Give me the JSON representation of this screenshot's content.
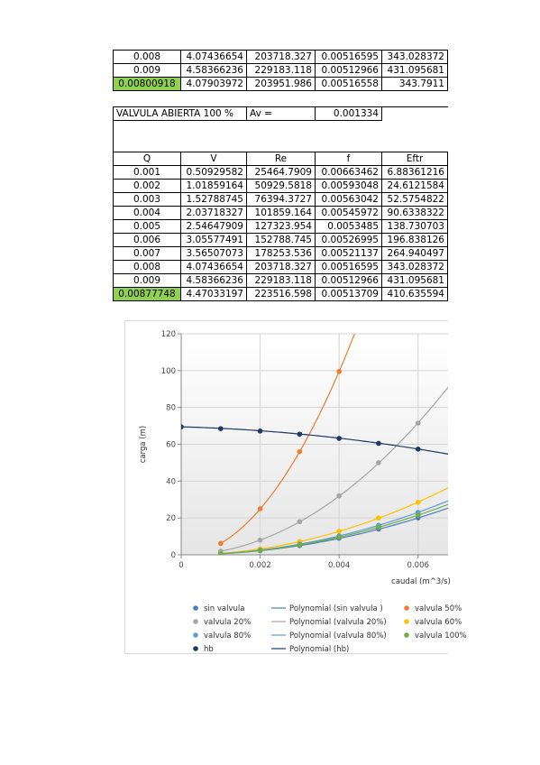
{
  "table_top": {
    "rows": [
      {
        "q": "0.008",
        "v": "4.07436654",
        "re": "203718.327",
        "f": "0.00516595",
        "eftr": "343.028372",
        "hl": false
      },
      {
        "q": "0.009",
        "v": "4.58366236",
        "re": "229183.118",
        "f": "0.00512966",
        "eftr": "431.095681",
        "hl": false
      },
      {
        "q": "0.00800918",
        "v": "4.07903972",
        "re": "203951.986",
        "f": "0.00516558",
        "eftr": "343.7911",
        "hl": true
      }
    ]
  },
  "table_main": {
    "title": "VALVULA ABIERTA 100 %",
    "av_label": "Av =",
    "av_value": "0.001334",
    "headers": [
      "Q",
      "V",
      "Re",
      "f",
      "Eftr"
    ],
    "rows": [
      {
        "q": "0.001",
        "v": "0.50929582",
        "re": "25464.7909",
        "f": "0.00663462",
        "eftr": "6.88361216",
        "hl": false
      },
      {
        "q": "0.002",
        "v": "1.01859164",
        "re": "50929.5818",
        "f": "0.00593048",
        "eftr": "24.6121584",
        "hl": false
      },
      {
        "q": "0.003",
        "v": "1.52788745",
        "re": "76394.3727",
        "f": "0.00563042",
        "eftr": "52.5754822",
        "hl": false
      },
      {
        "q": "0.004",
        "v": "2.03718327",
        "re": "101859.164",
        "f": "0.00545972",
        "eftr": "90.6338322",
        "hl": false
      },
      {
        "q": "0.005",
        "v": "2.54647909",
        "re": "127323.954",
        "f": "0.0053485",
        "eftr": "138.730703",
        "hl": false
      },
      {
        "q": "0.006",
        "v": "3.05577491",
        "re": "152788.745",
        "f": "0.00526995",
        "eftr": "196.838126",
        "hl": false
      },
      {
        "q": "0.007",
        "v": "3.56507073",
        "re": "178253.536",
        "f": "0.00521137",
        "eftr": "264.940497",
        "hl": false
      },
      {
        "q": "0.008",
        "v": "4.07436654",
        "re": "203718.327",
        "f": "0.00516595",
        "eftr": "343.028372",
        "hl": false
      },
      {
        "q": "0.009",
        "v": "4.58366236",
        "re": "229183.118",
        "f": "0.00512966",
        "eftr": "431.095681",
        "hl": false
      },
      {
        "q": "0.00877748",
        "v": "4.47033197",
        "re": "223516.598",
        "f": "0.00513709",
        "eftr": "410.635594",
        "hl": true
      }
    ]
  },
  "chart_data": {
    "type": "scatter",
    "xlabel": "caudal (m^3/s)",
    "ylabel": "carga (m)",
    "xlim": [
      0,
      0.007
    ],
    "ylim": [
      0,
      120
    ],
    "x_ticks": [
      "0",
      "0.002",
      "0.004",
      "0.006"
    ],
    "y_ticks": [
      "0",
      "20",
      "40",
      "60",
      "80",
      "100",
      "120"
    ],
    "grid": true,
    "legend_position": "bottom",
    "series": [
      {
        "name": "sin valvula",
        "color": "#4a7ebb",
        "x": [
          0.001,
          0.002,
          0.003,
          0.004,
          0.005,
          0.006
        ],
        "y": [
          0.6,
          2.2,
          5.0,
          9.0,
          14.0,
          20.0
        ]
      },
      {
        "name": "valvula 50%",
        "color": "#ed7d31",
        "x": [
          0.001,
          0.002,
          0.003,
          0.004
        ],
        "y": [
          6.2,
          25.0,
          56.0,
          99.5
        ]
      },
      {
        "name": "valvula 20%",
        "color": "#a5a5a5",
        "x": [
          0.001,
          0.002,
          0.003,
          0.004,
          0.005,
          0.006
        ],
        "y": [
          2.0,
          8.0,
          18.0,
          32.0,
          50.0,
          71.5
        ]
      },
      {
        "name": "valvula 60%",
        "color": "#ffc000",
        "x": [
          0.001,
          0.002,
          0.003,
          0.004,
          0.005,
          0.006
        ],
        "y": [
          0.8,
          3.2,
          7.2,
          12.8,
          20.0,
          28.5
        ]
      },
      {
        "name": "valvula 80%",
        "color": "#5b9bd5",
        "x": [
          0.001,
          0.002,
          0.003,
          0.004,
          0.005,
          0.006
        ],
        "y": [
          0.65,
          2.6,
          5.8,
          10.3,
          16.0,
          23.0
        ]
      },
      {
        "name": "valvula 100%",
        "color": "#70ad47",
        "x": [
          0.001,
          0.002,
          0.003,
          0.004,
          0.005,
          0.006
        ],
        "y": [
          0.62,
          2.4,
          5.4,
          9.6,
          15.0,
          21.5
        ]
      },
      {
        "name": "hb",
        "color": "#1f3864",
        "x": [
          0,
          0.001,
          0.002,
          0.003,
          0.004,
          0.005,
          0.006
        ],
        "y": [
          69.5,
          68.5,
          67.2,
          65.5,
          63.2,
          60.5,
          57.4
        ]
      }
    ],
    "fits": [
      {
        "name": "Polynomial (sin valvula )",
        "color": "#4a7ebb",
        "x0": 0.001,
        "type": "quad",
        "a": 555000
      },
      {
        "name": "valvula 50%",
        "color": "#ed7d31",
        "x0": 0.001,
        "type": "quad",
        "a": 6220000
      },
      {
        "name": "Polynomial (valvula 20%)",
        "color": "#a5a5a5",
        "x0": 0.001,
        "type": "quad",
        "a": 1990000
      },
      {
        "name": "valvula 60%",
        "color": "#ffc000",
        "x0": 0.001,
        "type": "quad",
        "a": 795000
      },
      {
        "name": "Polynomial (valvula 80%)",
        "color": "#5b9bd5",
        "x0": 0.001,
        "type": "quad",
        "a": 640000
      },
      {
        "name": "valvula 100%",
        "color": "#70ad47",
        "x0": 0.001,
        "type": "quad",
        "a": 598000
      },
      {
        "name": "Polynomial (hb)",
        "color": "#1f3864",
        "x0": 0,
        "type": "hb",
        "c": 69.5,
        "b": -600,
        "a": -235000
      }
    ],
    "legend": [
      {
        "label": "sin valvula",
        "kind": "marker",
        "color": "#4a7ebb"
      },
      {
        "label": "Polynomial (sin valvula )",
        "kind": "line",
        "color": "#4a7ebb"
      },
      {
        "label": "valvula 50%",
        "kind": "marker",
        "color": "#ed7d31"
      },
      {
        "label": "valvula 20%",
        "kind": "marker",
        "color": "#a5a5a5"
      },
      {
        "label": "Polynomial (valvula 20%)",
        "kind": "line",
        "color": "#a5a5a5"
      },
      {
        "label": "valvula 60%",
        "kind": "marker",
        "color": "#ffc000"
      },
      {
        "label": "valvula 80%",
        "kind": "marker",
        "color": "#5b9bd5"
      },
      {
        "label": "Polynomial (valvula 80%)",
        "kind": "line",
        "color": "#5b9bd5"
      },
      {
        "label": "valvula 100%",
        "kind": "marker",
        "color": "#70ad47"
      },
      {
        "label": "hb",
        "kind": "marker",
        "color": "#1f3864"
      },
      {
        "label": "Polynomial (hb)",
        "kind": "line",
        "color": "#1f3864"
      }
    ]
  }
}
